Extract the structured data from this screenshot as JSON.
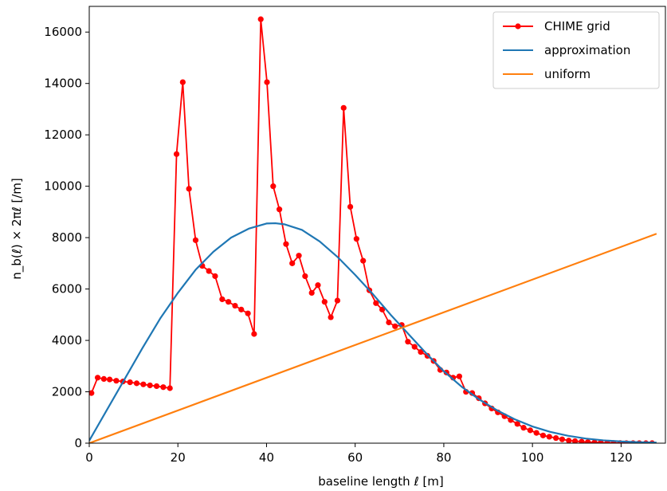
{
  "chart_data": {
    "type": "line",
    "xlabel": "baseline length ℓ [m]",
    "ylabel": "n_b(ℓ) × 2πℓ [/m]",
    "xlim": [
      0,
      130
    ],
    "ylim": [
      0,
      17000
    ],
    "xticks": [
      0,
      20,
      40,
      60,
      80,
      100,
      120
    ],
    "yticks": [
      0,
      2000,
      4000,
      6000,
      8000,
      10000,
      12000,
      14000,
      16000
    ],
    "legend_position": "top-right",
    "grid": false,
    "series": [
      {
        "name": "CHIME grid",
        "color": "#ff0000",
        "marker": "circle",
        "x": [
          0.5,
          1.9,
          3.3,
          4.6,
          6.1,
          7.6,
          9.2,
          10.7,
          12.2,
          13.7,
          15.2,
          16.7,
          18.2,
          19.7,
          21.1,
          22.5,
          24.0,
          25.5,
          27.0,
          28.4,
          30.0,
          31.4,
          32.9,
          34.3,
          35.8,
          37.2,
          38.7,
          40.1,
          41.5,
          42.9,
          44.4,
          45.8,
          47.3,
          48.7,
          50.2,
          51.6,
          53.1,
          54.5,
          56.0,
          57.4,
          58.9,
          60.3,
          61.8,
          63.2,
          64.7,
          66.1,
          67.6,
          69.0,
          70.5,
          71.9,
          73.4,
          74.8,
          76.3,
          77.7,
          79.2,
          80.6,
          82.1,
          83.5,
          85.0,
          86.4,
          87.9,
          89.3,
          90.8,
          92.2,
          93.7,
          95.1,
          96.6,
          98.0,
          99.5,
          100.9,
          102.4,
          103.8,
          105.3,
          106.7,
          108.2,
          109.6,
          111.1,
          112.5,
          114.0,
          115.4,
          116.9,
          118.3,
          119.8,
          121.2,
          122.7,
          124.1,
          125.6,
          127.0
        ],
        "y": [
          1950,
          2550,
          2500,
          2480,
          2430,
          2400,
          2370,
          2330,
          2290,
          2250,
          2220,
          2180,
          2140,
          11250,
          14050,
          9900,
          7900,
          6900,
          6700,
          6500,
          5600,
          5500,
          5350,
          5200,
          5050,
          4250,
          16500,
          14050,
          10000,
          9100,
          7750,
          7000,
          7300,
          6500,
          5850,
          6150,
          5500,
          4900,
          5550,
          13050,
          9200,
          7950,
          7100,
          5950,
          5450,
          5200,
          4700,
          4550,
          4600,
          3950,
          3750,
          3550,
          3400,
          3200,
          2850,
          2750,
          2550,
          2600,
          2000,
          1950,
          1750,
          1550,
          1350,
          1200,
          1050,
          900,
          750,
          600,
          500,
          400,
          300,
          250,
          200,
          150,
          100,
          80,
          60,
          40,
          30,
          20,
          10,
          5,
          3,
          2,
          1,
          1,
          0,
          0
        ]
      },
      {
        "name": "approximation",
        "color": "#1f77b4",
        "x": [
          0,
          4,
          8,
          12,
          16,
          20,
          24,
          28,
          32,
          36,
          40,
          42,
          44,
          48,
          52,
          56,
          60,
          64,
          68,
          72,
          76,
          80,
          84,
          88,
          92,
          96,
          100,
          104,
          108,
          112,
          116,
          120,
          124,
          128
        ],
        "y": [
          100,
          1300,
          2500,
          3700,
          4850,
          5850,
          6750,
          7450,
          8000,
          8350,
          8550,
          8560,
          8520,
          8300,
          7850,
          7250,
          6550,
          5800,
          5000,
          4250,
          3500,
          2800,
          2200,
          1700,
          1280,
          930,
          650,
          440,
          290,
          180,
          110,
          65,
          40,
          25
        ]
      },
      {
        "name": "uniform",
        "color": "#ff7f0e",
        "x": [
          0,
          128
        ],
        "y": [
          0,
          8150
        ]
      }
    ]
  }
}
